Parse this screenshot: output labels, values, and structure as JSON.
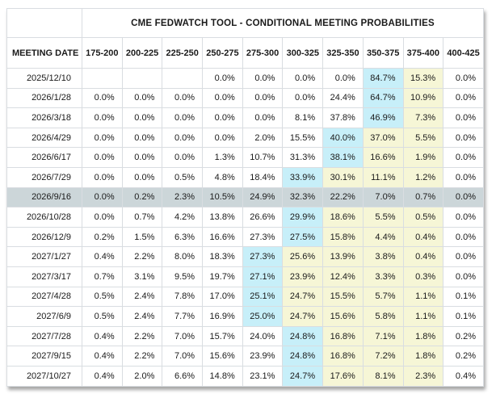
{
  "title": "CME FEDWATCH TOOL - CONDITIONAL MEETING PROBABILITIES",
  "columns": [
    "MEETING DATE",
    "175-200",
    "200-225",
    "225-250",
    "250-275",
    "275-300",
    "300-325",
    "325-350",
    "350-375",
    "375-400",
    "400-425"
  ],
  "colors": {
    "highlight_blue": "#c7eff9",
    "highlight_yellow": "#f6f6d6",
    "selected_row": "#ccd6d9"
  },
  "rows": [
    {
      "date": "2025/12/10",
      "values": [
        "",
        "",
        "",
        "0.0%",
        "0.0%",
        "0.0%",
        "0.0%",
        "84.7%",
        "15.3%",
        "0.0%"
      ],
      "blue": 7,
      "yellow": [
        8
      ],
      "selected": false
    },
    {
      "date": "2026/1/28",
      "values": [
        "0.0%",
        "0.0%",
        "0.0%",
        "0.0%",
        "0.0%",
        "0.0%",
        "24.4%",
        "64.7%",
        "10.9%",
        "0.0%"
      ],
      "blue": 7,
      "yellow": [
        8
      ],
      "selected": false
    },
    {
      "date": "2026/3/18",
      "values": [
        "0.0%",
        "0.0%",
        "0.0%",
        "0.0%",
        "0.0%",
        "8.1%",
        "37.8%",
        "46.9%",
        "7.3%",
        "0.0%"
      ],
      "blue": 7,
      "yellow": [
        8
      ],
      "selected": false
    },
    {
      "date": "2026/4/29",
      "values": [
        "0.0%",
        "0.0%",
        "0.0%",
        "0.0%",
        "2.0%",
        "15.5%",
        "40.0%",
        "37.0%",
        "5.5%",
        "0.0%"
      ],
      "blue": 6,
      "yellow": [
        7,
        8
      ],
      "selected": false
    },
    {
      "date": "2026/6/17",
      "values": [
        "0.0%",
        "0.0%",
        "0.0%",
        "1.3%",
        "10.7%",
        "31.3%",
        "38.1%",
        "16.6%",
        "1.9%",
        "0.0%"
      ],
      "blue": 6,
      "yellow": [
        7,
        8
      ],
      "selected": false
    },
    {
      "date": "2026/7/29",
      "values": [
        "0.0%",
        "0.0%",
        "0.5%",
        "4.8%",
        "18.4%",
        "33.9%",
        "30.1%",
        "11.1%",
        "1.2%",
        "0.0%"
      ],
      "blue": 5,
      "yellow": [
        6,
        7,
        8
      ],
      "selected": false
    },
    {
      "date": "2026/9/16",
      "values": [
        "0.0%",
        "0.2%",
        "2.3%",
        "10.5%",
        "24.9%",
        "32.3%",
        "22.2%",
        "7.0%",
        "0.7%",
        "0.0%"
      ],
      "blue": null,
      "yellow": [],
      "selected": true
    },
    {
      "date": "2026/10/28",
      "values": [
        "0.0%",
        "0.7%",
        "4.2%",
        "13.8%",
        "26.6%",
        "29.9%",
        "18.6%",
        "5.5%",
        "0.5%",
        "0.0%"
      ],
      "blue": 5,
      "yellow": [
        6,
        7,
        8
      ],
      "selected": false
    },
    {
      "date": "2026/12/9",
      "values": [
        "0.2%",
        "1.5%",
        "6.3%",
        "16.6%",
        "27.3%",
        "27.5%",
        "15.8%",
        "4.4%",
        "0.4%",
        "0.0%"
      ],
      "blue": 5,
      "yellow": [
        6,
        7,
        8
      ],
      "selected": false
    },
    {
      "date": "2027/1/27",
      "values": [
        "0.4%",
        "2.2%",
        "8.0%",
        "18.3%",
        "27.3%",
        "25.6%",
        "13.9%",
        "3.8%",
        "0.4%",
        "0.0%"
      ],
      "blue": 4,
      "yellow": [
        5,
        6,
        7,
        8
      ],
      "selected": false
    },
    {
      "date": "2027/3/17",
      "values": [
        "0.7%",
        "3.1%",
        "9.5%",
        "19.7%",
        "27.1%",
        "23.9%",
        "12.4%",
        "3.3%",
        "0.3%",
        "0.0%"
      ],
      "blue": 4,
      "yellow": [
        5,
        6,
        7,
        8
      ],
      "selected": false
    },
    {
      "date": "2027/4/28",
      "values": [
        "0.5%",
        "2.4%",
        "7.8%",
        "17.0%",
        "25.1%",
        "24.7%",
        "15.5%",
        "5.7%",
        "1.1%",
        "0.1%"
      ],
      "blue": 4,
      "yellow": [
        5,
        6,
        7,
        8
      ],
      "selected": false
    },
    {
      "date": "2027/6/9",
      "values": [
        "0.5%",
        "2.4%",
        "7.7%",
        "16.9%",
        "25.0%",
        "24.7%",
        "15.6%",
        "5.8%",
        "1.1%",
        "0.1%"
      ],
      "blue": 4,
      "yellow": [
        5,
        6,
        7,
        8
      ],
      "selected": false
    },
    {
      "date": "2027/7/28",
      "values": [
        "0.4%",
        "2.2%",
        "7.0%",
        "15.7%",
        "24.0%",
        "24.8%",
        "16.8%",
        "7.1%",
        "1.8%",
        "0.2%"
      ],
      "blue": 5,
      "yellow": [
        6,
        7,
        8
      ],
      "selected": false
    },
    {
      "date": "2027/9/15",
      "values": [
        "0.4%",
        "2.2%",
        "7.0%",
        "15.6%",
        "23.9%",
        "24.8%",
        "16.8%",
        "7.2%",
        "1.8%",
        "0.2%"
      ],
      "blue": 5,
      "yellow": [
        6,
        7,
        8
      ],
      "selected": false
    },
    {
      "date": "2027/10/27",
      "values": [
        "0.4%",
        "2.0%",
        "6.6%",
        "14.8%",
        "23.1%",
        "24.7%",
        "17.6%",
        "8.1%",
        "2.3%",
        "0.4%"
      ],
      "blue": 5,
      "yellow": [
        6,
        7,
        8
      ],
      "selected": false
    }
  ]
}
